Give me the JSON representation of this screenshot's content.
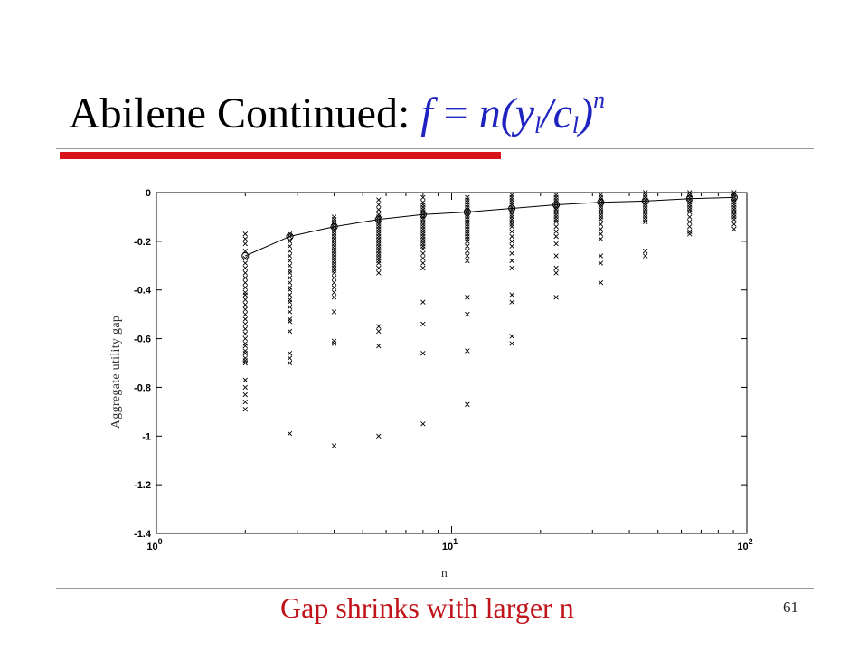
{
  "slide": {
    "title_text": "Abilene Continued: ",
    "formula": {
      "f": "f",
      "eq": " = ",
      "n": "n",
      "open": "(",
      "y": "y",
      "sub_y": "l",
      "slash": "/",
      "c": "c",
      "sub_c": "l",
      "close": ")",
      "sup": "n"
    },
    "footer": "Gap shrinks with larger n",
    "page_number": "61",
    "colors": {
      "title": "#000000",
      "formula": "#1f24c0",
      "accent_bar": "#d7141a",
      "footer": "#c0141a"
    }
  },
  "chart_data": {
    "type": "scatter",
    "xscale": "log",
    "xlim": [
      1,
      100
    ],
    "ylim": [
      -1.4,
      0
    ],
    "xlabel": "n",
    "ylabel": "Aggregate utility gap",
    "x_ticks": [
      {
        "value": 1,
        "base": "10",
        "exp": "0"
      },
      {
        "value": 10,
        "base": "10",
        "exp": "1"
      },
      {
        "value": 100,
        "base": "10",
        "exp": "2"
      }
    ],
    "y_ticks": [
      "0",
      "-0.2",
      "-0.4",
      "-0.6",
      "-0.8",
      "-1",
      "-1.2",
      "-1.4"
    ],
    "grid": false,
    "series": [
      {
        "marker": "x",
        "points_by_x": [
          {
            "x": 2,
            "y": [
              -0.17,
              -0.19,
              -0.21,
              -0.24,
              -0.27,
              -0.29,
              -0.31,
              -0.33,
              -0.35,
              -0.37,
              -0.39,
              -0.41,
              -0.42,
              -0.44,
              -0.46,
              -0.48,
              -0.5,
              -0.52,
              -0.54,
              -0.56,
              -0.58,
              -0.6,
              -0.62,
              -0.63,
              -0.65,
              -0.66,
              -0.68,
              -0.69,
              -0.7,
              -0.77,
              -0.8,
              -0.83,
              -0.86,
              -0.89
            ]
          },
          {
            "x": 2.83,
            "y": [
              -0.17,
              -0.18,
              -0.2,
              -0.22,
              -0.24,
              -0.26,
              -0.28,
              -0.3,
              -0.32,
              -0.33,
              -0.35,
              -0.37,
              -0.39,
              -0.4,
              -0.42,
              -0.44,
              -0.45,
              -0.47,
              -0.49,
              -0.52,
              -0.53,
              -0.57,
              -0.66,
              -0.68,
              -0.7,
              -0.99
            ]
          },
          {
            "x": 4,
            "y": [
              -0.1,
              -0.11,
              -0.12,
              -0.13,
              -0.14,
              -0.15,
              -0.16,
              -0.17,
              -0.18,
              -0.19,
              -0.2,
              -0.21,
              -0.22,
              -0.23,
              -0.24,
              -0.25,
              -0.26,
              -0.27,
              -0.28,
              -0.29,
              -0.3,
              -0.31,
              -0.32,
              -0.33,
              -0.35,
              -0.37,
              -0.39,
              -0.41,
              -0.43,
              -0.49,
              -0.61,
              -0.62,
              -1.04
            ]
          },
          {
            "x": 5.66,
            "y": [
              -0.03,
              -0.05,
              -0.07,
              -0.09,
              -0.1,
              -0.11,
              -0.12,
              -0.13,
              -0.14,
              -0.15,
              -0.16,
              -0.17,
              -0.18,
              -0.19,
              -0.2,
              -0.21,
              -0.22,
              -0.23,
              -0.24,
              -0.25,
              -0.26,
              -0.27,
              -0.28,
              -0.29,
              -0.31,
              -0.33,
              -0.55,
              -0.57,
              -0.63,
              -1.0
            ]
          },
          {
            "x": 8,
            "y": [
              -0.02,
              -0.04,
              -0.05,
              -0.06,
              -0.07,
              -0.08,
              -0.09,
              -0.1,
              -0.11,
              -0.12,
              -0.13,
              -0.14,
              -0.15,
              -0.16,
              -0.17,
              -0.18,
              -0.19,
              -0.2,
              -0.21,
              -0.22,
              -0.23,
              -0.25,
              -0.27,
              -0.29,
              -0.31,
              -0.45,
              -0.54,
              -0.66,
              -0.95
            ]
          },
          {
            "x": 11.3,
            "y": [
              -0.02,
              -0.03,
              -0.04,
              -0.05,
              -0.06,
              -0.07,
              -0.08,
              -0.09,
              -0.1,
              -0.11,
              -0.12,
              -0.13,
              -0.14,
              -0.15,
              -0.16,
              -0.17,
              -0.18,
              -0.19,
              -0.2,
              -0.22,
              -0.24,
              -0.26,
              -0.28,
              -0.43,
              -0.5,
              -0.65,
              -0.87
            ]
          },
          {
            "x": 16,
            "y": [
              -0.01,
              -0.02,
              -0.03,
              -0.04,
              -0.05,
              -0.06,
              -0.07,
              -0.08,
              -0.09,
              -0.1,
              -0.11,
              -0.12,
              -0.13,
              -0.14,
              -0.16,
              -0.18,
              -0.2,
              -0.22,
              -0.25,
              -0.28,
              -0.31,
              -0.42,
              -0.45,
              -0.59,
              -0.62
            ]
          },
          {
            "x": 22.6,
            "y": [
              -0.01,
              -0.02,
              -0.03,
              -0.04,
              -0.05,
              -0.06,
              -0.07,
              -0.08,
              -0.09,
              -0.1,
              -0.11,
              -0.12,
              -0.14,
              -0.16,
              -0.18,
              -0.21,
              -0.26,
              -0.31,
              -0.33,
              -0.43
            ]
          },
          {
            "x": 32,
            "y": [
              -0.01,
              -0.02,
              -0.03,
              -0.04,
              -0.05,
              -0.06,
              -0.07,
              -0.08,
              -0.09,
              -0.1,
              -0.11,
              -0.13,
              -0.15,
              -0.17,
              -0.19,
              -0.26,
              -0.29,
              -0.37
            ]
          },
          {
            "x": 45.3,
            "y": [
              0.0,
              -0.01,
              -0.02,
              -0.03,
              -0.04,
              -0.05,
              -0.06,
              -0.07,
              -0.08,
              -0.09,
              -0.1,
              -0.11,
              -0.12,
              -0.24,
              -0.26
            ]
          },
          {
            "x": 64,
            "y": [
              0.0,
              -0.01,
              -0.02,
              -0.03,
              -0.04,
              -0.05,
              -0.06,
              -0.07,
              -0.08,
              -0.1,
              -0.12,
              -0.14,
              -0.16,
              -0.17
            ]
          },
          {
            "x": 90.5,
            "y": [
              0.0,
              -0.01,
              -0.02,
              -0.03,
              -0.04,
              -0.05,
              -0.06,
              -0.07,
              -0.08,
              -0.09,
              -0.1,
              -0.11,
              -0.13,
              -0.15
            ]
          }
        ]
      },
      {
        "marker": "line-o",
        "x": [
          2,
          2.83,
          4,
          5.66,
          8,
          11.3,
          16,
          22.6,
          32,
          45.3,
          64,
          90.5
        ],
        "y": [
          -0.26,
          -0.18,
          -0.14,
          -0.11,
          -0.09,
          -0.08,
          -0.065,
          -0.05,
          -0.04,
          -0.035,
          -0.025,
          -0.02
        ]
      }
    ]
  }
}
